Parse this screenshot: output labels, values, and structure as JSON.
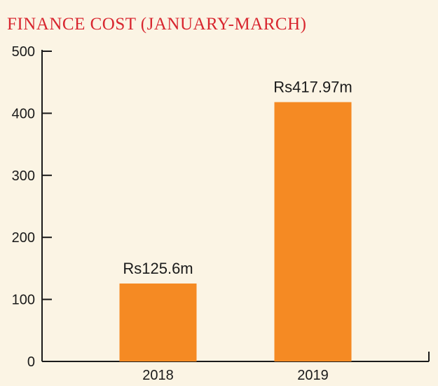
{
  "chart_data": {
    "type": "bar",
    "title": "FINANCE COST (JANUARY-MARCH)",
    "categories": [
      "2018",
      "2019"
    ],
    "values": [
      125.6,
      417.97
    ],
    "data_labels": [
      "Rs125.6m",
      "Rs417.97m"
    ],
    "xlabel": "",
    "ylabel": "",
    "ylim": [
      0,
      500
    ],
    "yticks": [
      0,
      100,
      200,
      300,
      400,
      500
    ],
    "grid": false,
    "legend": "none"
  },
  "colors": {
    "background": "#fbf4e4",
    "title": "#d8262f",
    "bar": "#f58a23",
    "axis": "#1a1a1a",
    "text": "#1a1a1a"
  }
}
